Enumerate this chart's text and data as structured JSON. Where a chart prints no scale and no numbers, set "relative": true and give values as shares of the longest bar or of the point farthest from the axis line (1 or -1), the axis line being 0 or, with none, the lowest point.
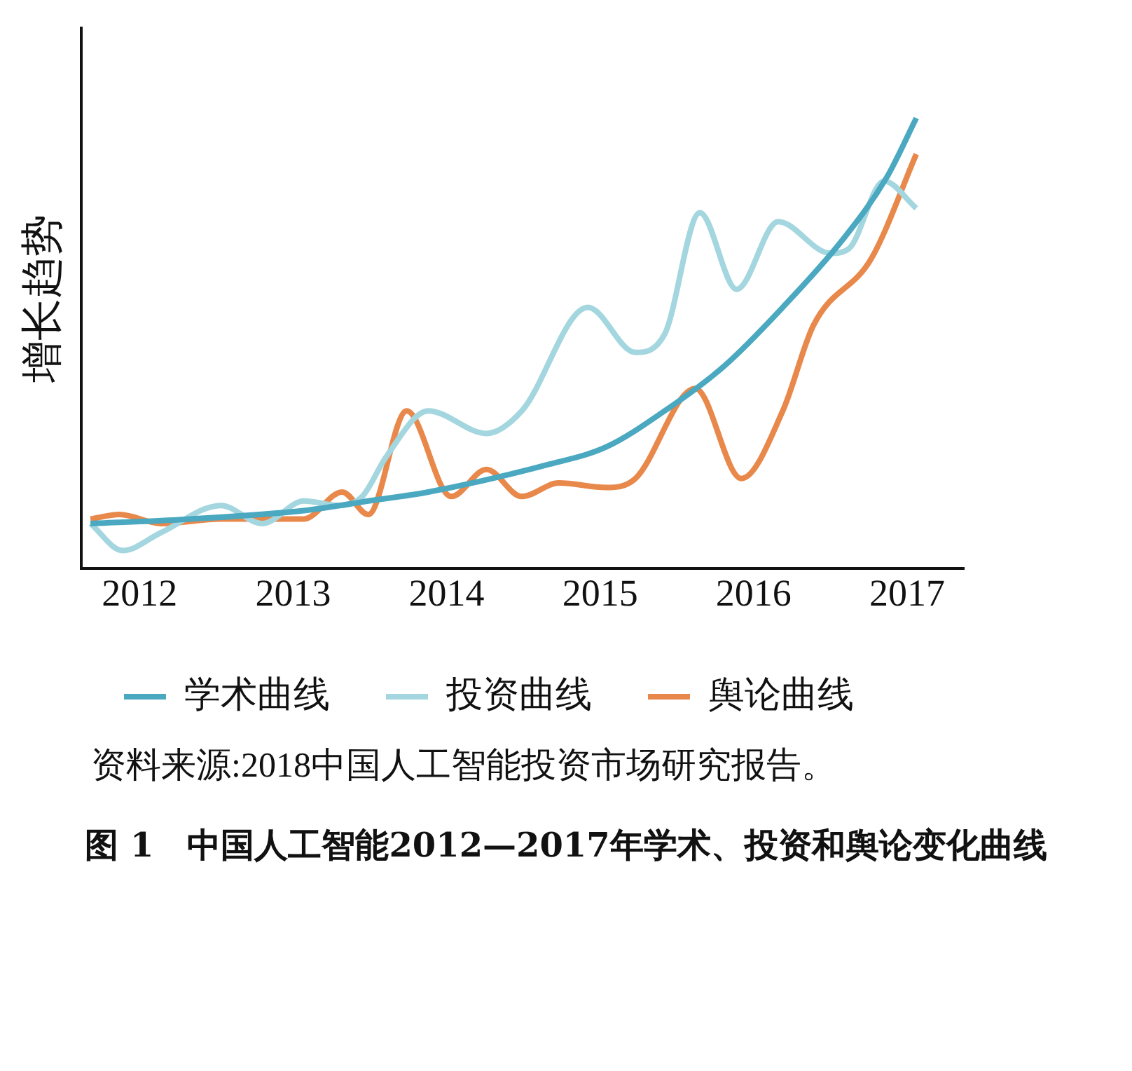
{
  "chart_data": {
    "type": "line",
    "title": "图 1　中国人工智能2012—2017年学术、投资和舆论变化曲线",
    "ylabel": "增长趋势",
    "annotations": [
      "资料来源:2018中国人工智能投资市场研究报告。"
    ],
    "relative": true,
    "marker": "none",
    "legend": "bottom",
    "xlim": [
      2011.62,
      2017.37
    ],
    "xticks": [
      2012,
      2013,
      2014,
      2015,
      2016,
      2017
    ],
    "series": [
      {
        "name": "学术曲线",
        "color": "#4aa8c0",
        "x": [
          2011.68,
          2012.33,
          2013.1,
          2013.49,
          2013.88,
          2014.65,
          2015.04,
          2015.42,
          2015.81,
          2016.19,
          2016.58,
          2016.87,
          2017.06
        ],
        "values": [
          0.1,
          0.11,
          0.13,
          0.15,
          0.17,
          0.23,
          0.27,
          0.35,
          0.45,
          0.58,
          0.73,
          0.87,
          1.0
        ]
      },
      {
        "name": "投资曲线",
        "color": "#a3d6df",
        "x": [
          2011.68,
          2011.89,
          2012.14,
          2012.53,
          2012.8,
          2013.07,
          2013.3,
          2013.45,
          2013.61,
          2013.88,
          2014.26,
          2014.49,
          2014.92,
          2015.23,
          2015.42,
          2015.65,
          2015.89,
          2016.16,
          2016.5,
          2016.62,
          2016.85,
          2017.06
        ],
        "values": [
          0.1,
          0.04,
          0.08,
          0.14,
          0.1,
          0.15,
          0.14,
          0.16,
          0.25,
          0.35,
          0.3,
          0.35,
          0.58,
          0.48,
          0.52,
          0.79,
          0.62,
          0.77,
          0.7,
          0.71,
          0.86,
          0.8
        ]
      },
      {
        "name": "舆论曲线",
        "color": "#e8884a",
        "x": [
          2011.68,
          2011.87,
          2012.14,
          2012.53,
          2012.8,
          2013.07,
          2013.32,
          2013.49,
          2013.74,
          2014.03,
          2014.26,
          2014.49,
          2014.73,
          2015.04,
          2015.23,
          2015.62,
          2015.92,
          2016.19,
          2016.39,
          2016.77,
          2017.06
        ],
        "values": [
          0.11,
          0.12,
          0.1,
          0.11,
          0.11,
          0.11,
          0.17,
          0.12,
          0.35,
          0.16,
          0.22,
          0.16,
          0.19,
          0.18,
          0.2,
          0.4,
          0.2,
          0.35,
          0.54,
          0.69,
          0.92
        ]
      }
    ]
  }
}
